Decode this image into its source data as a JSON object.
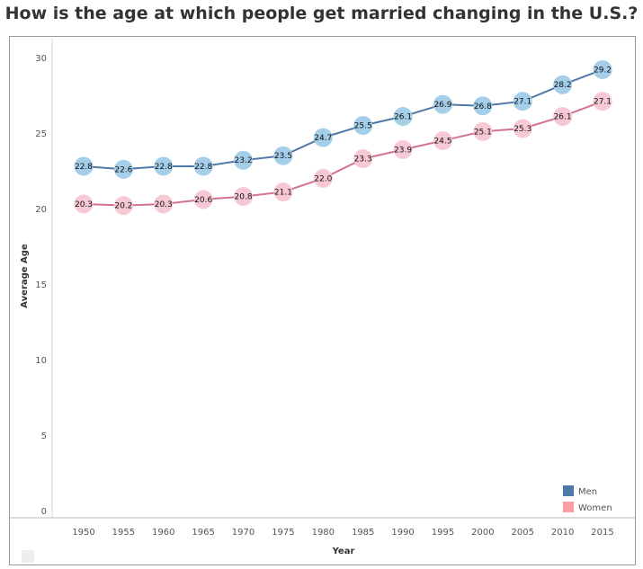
{
  "chart_data": {
    "type": "line",
    "title": "How is the age at which people get married changing in the U.S.?",
    "xlabel": "Year",
    "ylabel": "Average Age",
    "x": [
      1950,
      1955,
      1960,
      1965,
      1970,
      1975,
      1980,
      1985,
      1990,
      1995,
      2000,
      2005,
      2010,
      2015
    ],
    "yticks": [
      0,
      5,
      10,
      15,
      20,
      25,
      30
    ],
    "ylim": [
      0,
      30
    ],
    "grid": false,
    "legend": "bottom-right",
    "series": [
      {
        "name": "Men",
        "line_color": "#4e79a7",
        "marker_color": "#a0cbe8",
        "legend_color": "#4e79a7",
        "values": [
          22.8,
          22.6,
          22.8,
          22.8,
          23.2,
          23.5,
          24.7,
          25.5,
          26.1,
          26.9,
          26.8,
          27.1,
          28.2,
          29.2
        ]
      },
      {
        "name": "Women",
        "line_color": "#d37295",
        "marker_color": "#f7c6d2",
        "legend_color": "#ff9da7",
        "values": [
          20.3,
          20.2,
          20.3,
          20.6,
          20.8,
          21.1,
          22.0,
          23.3,
          23.9,
          24.5,
          25.1,
          25.3,
          26.1,
          27.1
        ]
      }
    ]
  }
}
